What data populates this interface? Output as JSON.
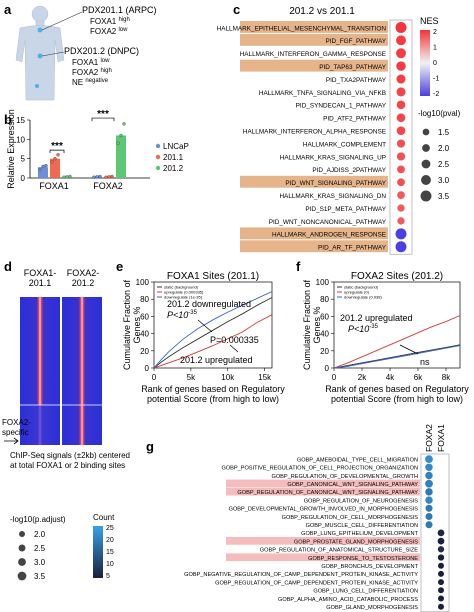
{
  "panel_letters": [
    "a",
    "b",
    "c",
    "d",
    "e",
    "f",
    "g"
  ],
  "panel_a": {
    "pdx1": "PDX201.1 (ARPC)",
    "pdx1_lines": [
      {
        "gene": "FOXA1",
        "level": "high"
      },
      {
        "gene": "FOXA2",
        "level": "low"
      }
    ],
    "pdx2": "PDX201.2 (DNPC)",
    "pdx2_lines": [
      {
        "gene": "FOXA1",
        "level": "low"
      },
      {
        "gene": "FOXA2",
        "level": "high"
      },
      {
        "gene": "NE",
        "level": "negative"
      }
    ]
  },
  "colors": {
    "lncap": "#6b8fd8",
    "pdx201_1": "#ef6a4f",
    "pdx201_2": "#5cc774",
    "highlight_orange": "#e6b48a",
    "highlight_pink": "#f4bcbc",
    "nes_high": "#f4333a",
    "nes_mid": "#f2f2f2",
    "nes_low": "#4a3fe0",
    "count_high": "#3aa0e8",
    "count_low": "#1a1f3f"
  },
  "chart_data": [
    {
      "panel": "b",
      "type": "bar",
      "ylabel": "Relative Expression",
      "categories": [
        "FOXA1",
        "FOXA2"
      ],
      "yticks": [
        "0",
        "5",
        "10",
        "15"
      ],
      "ylim": [
        0,
        15
      ],
      "series": [
        {
          "name": "LNCaP",
          "values": [
            2.8,
            0.3
          ],
          "points": [
            [
              2.2,
              3.0,
              3.2
            ],
            [
              0.2,
              0.3,
              0.4
            ]
          ]
        },
        {
          "name": "201.1",
          "values": [
            5.0,
            0.3
          ],
          "points": [
            [
              4.2,
              5.0,
              6.0
            ],
            [
              0.2,
              0.3,
              0.4
            ]
          ]
        },
        {
          "name": "201.2",
          "values": [
            0.3,
            11.0
          ],
          "points": [
            [
              0.2,
              0.3,
              0.4
            ],
            [
              9.0,
              11.0,
              14.0
            ]
          ]
        }
      ],
      "significance": [
        "***",
        "***"
      ]
    },
    {
      "panel": "c",
      "type": "scatter",
      "title": "201.2 vs 201.1",
      "pathways": [
        {
          "name": "HALLMARK_EPITHELIAL_MESENCHYMAL_TRANSITION",
          "nes": 2.0,
          "size": 3.5,
          "highlight": true
        },
        {
          "name": "PID_FGF_PATHWAY",
          "nes": 1.9,
          "size": 3.0,
          "highlight": true
        },
        {
          "name": "HALLMARK_INTERFERON_GAMMA_RESPONSE",
          "nes": 1.9,
          "size": 3.0,
          "highlight": false
        },
        {
          "name": "PID_TAP63_PATHWAY",
          "nes": 1.9,
          "size": 2.8,
          "highlight": true
        },
        {
          "name": "PID_TXA2PATHWAY",
          "nes": 1.9,
          "size": 2.6,
          "highlight": false
        },
        {
          "name": "HALLMARK_TNFA_SIGNALING_VIA_NFKB",
          "nes": 1.8,
          "size": 2.6,
          "highlight": false
        },
        {
          "name": "PID_SYNDECAN_1_PATHWAY",
          "nes": 1.8,
          "size": 2.4,
          "highlight": false
        },
        {
          "name": "PID_ATF2_PATHWAY",
          "nes": 1.8,
          "size": 2.4,
          "highlight": false
        },
        {
          "name": "HALLMARK_INTERFERON_ALPHA_RESPONSE",
          "nes": 1.8,
          "size": 2.4,
          "highlight": false
        },
        {
          "name": "HALLMARK_COMPLEMENT",
          "nes": 1.7,
          "size": 2.2,
          "highlight": false
        },
        {
          "name": "HALLMARK_KRAS_SIGNALING_UP",
          "nes": 1.7,
          "size": 2.2,
          "highlight": false
        },
        {
          "name": "PID_AJDISS_2PATHWAY",
          "nes": 1.7,
          "size": 2.0,
          "highlight": false
        },
        {
          "name": "PID_WNT_SIGNALING_PATHWAY",
          "nes": 1.7,
          "size": 2.0,
          "highlight": true
        },
        {
          "name": "HALLMARK_KRAS_SIGNALING_DN",
          "nes": 1.6,
          "size": 2.0,
          "highlight": false
        },
        {
          "name": "PID_S1P_META_PATHWAY",
          "nes": 1.6,
          "size": 1.8,
          "highlight": false
        },
        {
          "name": "PID_WNT_NONCANONICAL_PATHWAY",
          "nes": 1.6,
          "size": 1.8,
          "highlight": false
        },
        {
          "name": "HALLMARK_ANDROGEN_RESPONSE",
          "nes": -2.0,
          "size": 3.5,
          "highlight": true
        },
        {
          "name": "PID_AR_TF_PATHWAY",
          "nes": -2.0,
          "size": 3.5,
          "highlight": true
        }
      ],
      "nes_legend_title": "NES",
      "nes_ticks": [
        "2",
        "1",
        "0",
        "-1",
        "-2"
      ],
      "size_legend_title": "-log10(pval)",
      "size_legend": [
        "1.5",
        "2.0",
        "2.5",
        "3.0",
        "3.5"
      ]
    },
    {
      "panel": "d",
      "type": "heatmap",
      "columns": [
        "FOXA1-\n201.1",
        "FOXA2-\n201.2"
      ],
      "side_label": "FOXA2-\nspecific",
      "caption": "ChIP-Seq signals (±2kb) centered\nat total FOXA1 or 2 binding sites"
    },
    {
      "panel": "e",
      "type": "line",
      "title": "FOXA1 Sites (201.1)",
      "xlabel": "Rank of genes based on Regulatory\npotential Score (from high to low)",
      "ylabel": "Cumulative Fraction of\nGenes %",
      "xticks": [
        "0",
        "5k",
        "10k",
        "15k"
      ],
      "yticks": [
        "0",
        "20",
        "40",
        "60",
        "80",
        "100"
      ],
      "xlim": [
        0,
        16000
      ],
      "ylim": [
        0,
        100
      ],
      "legend": [
        "static (background)",
        "upregulate (0.000335)",
        "downregulate (1e-35)"
      ],
      "series": [
        {
          "name": "static (background)",
          "color": "#333333",
          "x": [
            0,
            1000,
            2000,
            4000,
            6000,
            8000,
            10000,
            12000,
            14000,
            16000
          ],
          "y": [
            0,
            7,
            13,
            24,
            34,
            44,
            54,
            63,
            73,
            82
          ]
        },
        {
          "name": "upregulate (0.000335)",
          "color": "#d33a3a",
          "x": [
            0,
            1000,
            2000,
            4000,
            6000,
            8000,
            10000,
            12000,
            14000,
            16000
          ],
          "y": [
            0,
            3,
            6,
            12,
            19,
            26,
            34,
            42,
            53,
            62
          ]
        },
        {
          "name": "downregulate (1e-35)",
          "color": "#3a64d3",
          "x": [
            0,
            1000,
            2000,
            4000,
            6000,
            8000,
            10000,
            12000,
            14000,
            16000
          ],
          "y": [
            0,
            10,
            19,
            34,
            46,
            56,
            65,
            73,
            81,
            89
          ]
        }
      ],
      "annotations": [
        "201.2 downregulated",
        "P<10",
        "-35",
        "P=0.000335",
        "201.2 upregulated"
      ]
    },
    {
      "panel": "f",
      "type": "line",
      "title": "FOXA2 Sites (201.2)",
      "xlabel": "Rank of genes based on Regulatory\npotential Score (from high to low)",
      "ylabel": "Cumulative Fraction of\nGenes %",
      "xticks": [
        "0",
        "2k",
        "4k",
        "6k",
        "8k"
      ],
      "yticks": [
        "0",
        "20",
        "40",
        "60",
        "80",
        "100"
      ],
      "xlim": [
        0,
        9000
      ],
      "ylim": [
        0,
        100
      ],
      "legend": [
        "static (background)",
        "upregulate (0)",
        "downregulate (0.938)"
      ],
      "series": [
        {
          "name": "static (background)",
          "color": "#333333",
          "x": [
            0,
            1000,
            2000,
            3000,
            4000,
            5000,
            6000,
            7000,
            8000,
            9000
          ],
          "y": [
            0,
            3,
            6,
            9,
            12,
            15,
            18,
            21,
            24,
            27
          ]
        },
        {
          "name": "upregulate (0)",
          "color": "#d33a3a",
          "x": [
            0,
            1000,
            2000,
            3000,
            4000,
            5000,
            6000,
            7000,
            8000,
            9000
          ],
          "y": [
            0,
            6,
            13,
            20,
            27,
            34,
            41,
            48,
            54,
            61
          ]
        },
        {
          "name": "downregulate (0.938)",
          "color": "#3a64d3",
          "x": [
            0,
            1000,
            2000,
            3000,
            4000,
            5000,
            6000,
            7000,
            8000,
            9000
          ],
          "y": [
            0,
            2,
            5,
            8,
            11,
            14,
            17,
            20,
            23,
            26
          ]
        }
      ],
      "annotations": [
        "201.2 upregulated",
        "P<10",
        "-35",
        "ns"
      ]
    },
    {
      "panel": "g",
      "type": "scatter",
      "columns": [
        "FOXA2",
        "FOXA1"
      ],
      "terms": [
        {
          "name": "GOBP_AMEBOIDAL_TYPE_CELL_MIGRATION",
          "count": 22,
          "size": 3.0,
          "highlight": false
        },
        {
          "name": "GOBP_POSITIVE_REGULATION_OF_CELL_PROJECTION_ORGANIZATION",
          "count": 21,
          "size": 2.8,
          "highlight": false
        },
        {
          "name": "GOBP_REGULATION_OF_DEVELOPMENTAL_GROWTH",
          "count": 20,
          "size": 2.8,
          "highlight": false
        },
        {
          "name": "GOBP_CANONICAL_WNT_SIGNALING_PATHWAY",
          "count": 20,
          "size": 3.0,
          "highlight": true
        },
        {
          "name": "GOBP_REGULATION_OF_CANONICAL_WNT_SIGNALING_PATHWAY",
          "count": 19,
          "size": 2.8,
          "highlight": true
        },
        {
          "name": "GOBP_REGULATION_OF_NEUROGENESIS",
          "count": 21,
          "size": 2.8,
          "highlight": false
        },
        {
          "name": "GOBP_DEVELOPMENTAL_GROWTH_INVOLVED_IN_MORPHOGENESIS",
          "count": 19,
          "size": 2.6,
          "highlight": false
        },
        {
          "name": "GOBP_REGULATION_OF_CELL_MORPHOGENESIS",
          "count": 19,
          "size": 2.6,
          "highlight": false
        },
        {
          "name": "GOBP_MUSCLE_CELL_DIFFERENTIATION",
          "count": 19,
          "size": 2.6,
          "highlight": false
        },
        {
          "name": "GOBP_LUNG_EPITHELIUM_DEVELOPMENT",
          "count": 6,
          "size": 2.4,
          "highlight": false
        },
        {
          "name": "GOBP_PROSTATE_GLAND_MORPHOGENESIS",
          "count": 5,
          "size": 2.4,
          "highlight": true
        },
        {
          "name": "GOBP_REGULATION_OF_ANATOMICAL_STRUCTURE_SIZE",
          "count": 7,
          "size": 2.2,
          "highlight": false
        },
        {
          "name": "GOBP_RESPONSE_TO_TESTOSTERONE",
          "count": 5,
          "size": 2.2,
          "highlight": true
        },
        {
          "name": "GOBP_BRONCHUS_DEVELOPMENT",
          "count": 4,
          "size": 2.0,
          "highlight": false
        },
        {
          "name": "GOBP_NEGATIVE_REGULATION_OF_CAMP_DEPENDENT_PROTEIN_KINASE_ACTIVITY",
          "count": 4,
          "size": 2.0,
          "highlight": false
        },
        {
          "name": "GOBP_REGULATION_OF_CAMP_DEPENDENT_PROTEIN_KINASE_ACTIVITY",
          "count": 4,
          "size": 2.0,
          "highlight": false
        },
        {
          "name": "GOBP_LUNG_CELL_DIFFERENTIATION",
          "count": 4,
          "size": 2.0,
          "highlight": false
        },
        {
          "name": "GOBP_ALPHA_AMINO_ACID_CATABOLIC_PROCESS",
          "count": 4,
          "size": 2.0,
          "highlight": false
        },
        {
          "name": "GOBP_GLAND_MORPHOGENESIS",
          "count": 5,
          "size": 2.0,
          "highlight": false
        }
      ],
      "count_legend_title": "Count",
      "count_ticks": [
        "25",
        "20",
        "15",
        "10",
        "5"
      ],
      "size_legend_title": "-log10(p.adjust)",
      "size_legend": [
        "2.0",
        "2.5",
        "3.0",
        "3.5"
      ]
    }
  ]
}
